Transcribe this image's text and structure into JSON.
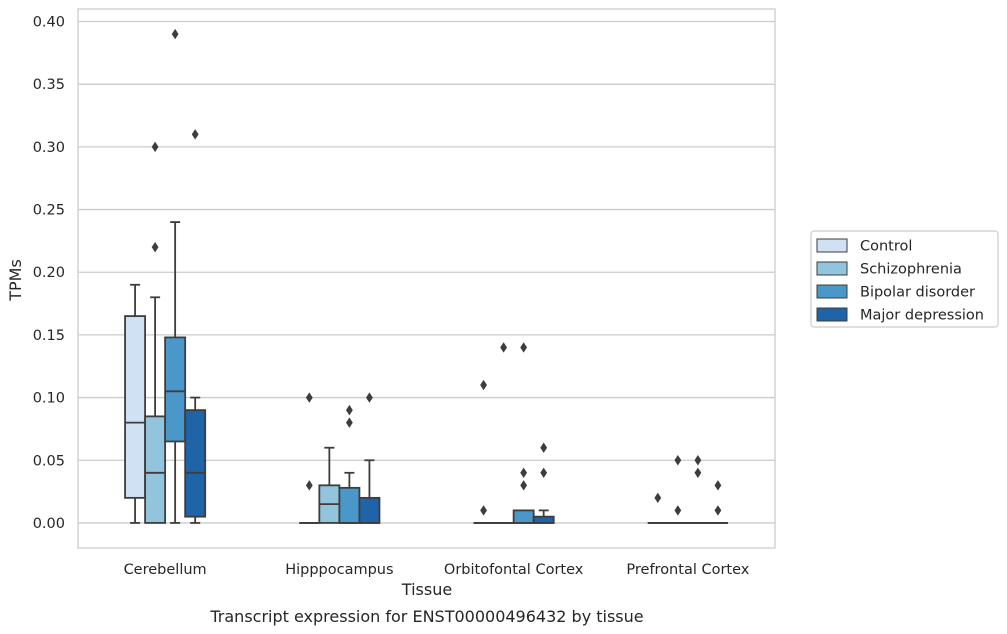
{
  "caption": "Transcript expression for ENST00000496432 by tissue",
  "chart_data": {
    "type": "box",
    "title": "",
    "xlabel": "Tissue",
    "ylabel": "TPMs",
    "ylim": [
      -0.02,
      0.41
    ],
    "yticks": [
      "0.00",
      "0.05",
      "0.10",
      "0.15",
      "0.20",
      "0.25",
      "0.30",
      "0.35",
      "0.40"
    ],
    "grid": "horizontal",
    "legend_position": "right",
    "categories": [
      "Cerebellum",
      "Hipppocampus",
      "Orbitofontal Cortex",
      "Prefrontal Cortex"
    ],
    "series": [
      {
        "name": "Control",
        "color": "#cfe1f2",
        "boxes": [
          {
            "q1": 0.02,
            "median": 0.08,
            "q3": 0.165,
            "whisker_low": 0.0,
            "whisker_high": 0.19,
            "outliers": []
          },
          {
            "q1": 0.0,
            "median": 0.0,
            "q3": 0.0,
            "whisker_low": 0.0,
            "whisker_high": 0.0,
            "outliers": [
              0.03,
              0.1
            ]
          },
          {
            "q1": 0.0,
            "median": 0.0,
            "q3": 0.0,
            "whisker_low": 0.0,
            "whisker_high": 0.0,
            "outliers": [
              0.01,
              0.11
            ]
          },
          {
            "q1": 0.0,
            "median": 0.0,
            "q3": 0.0,
            "whisker_low": 0.0,
            "whisker_high": 0.0,
            "outliers": [
              0.02
            ]
          }
        ]
      },
      {
        "name": "Schizophrenia",
        "color": "#93c4de",
        "boxes": [
          {
            "q1": 0.0,
            "median": 0.04,
            "q3": 0.085,
            "whisker_low": 0.0,
            "whisker_high": 0.18,
            "outliers": [
              0.22,
              0.3
            ]
          },
          {
            "q1": 0.0,
            "median": 0.015,
            "q3": 0.03,
            "whisker_low": 0.0,
            "whisker_high": 0.06,
            "outliers": []
          },
          {
            "q1": 0.0,
            "median": 0.0,
            "q3": 0.0,
            "whisker_low": 0.0,
            "whisker_high": 0.0,
            "outliers": [
              0.14
            ]
          },
          {
            "q1": 0.0,
            "median": 0.0,
            "q3": 0.0,
            "whisker_low": 0.0,
            "whisker_high": 0.0,
            "outliers": [
              0.01,
              0.05
            ]
          }
        ]
      },
      {
        "name": "Bipolar disorder",
        "color": "#4a98c9",
        "boxes": [
          {
            "q1": 0.065,
            "median": 0.105,
            "q3": 0.148,
            "whisker_low": 0.0,
            "whisker_high": 0.24,
            "outliers": [
              0.39
            ]
          },
          {
            "q1": 0.0,
            "median": 0.0,
            "q3": 0.028,
            "whisker_low": 0.0,
            "whisker_high": 0.04,
            "outliers": [
              0.08,
              0.09
            ]
          },
          {
            "q1": 0.0,
            "median": 0.0,
            "q3": 0.01,
            "whisker_low": 0.0,
            "whisker_high": 0.01,
            "outliers": [
              0.03,
              0.04,
              0.14
            ]
          },
          {
            "q1": 0.0,
            "median": 0.0,
            "q3": 0.0,
            "whisker_low": 0.0,
            "whisker_high": 0.0,
            "outliers": [
              0.04,
              0.05
            ]
          }
        ]
      },
      {
        "name": "Major depression",
        "color": "#1f63a8",
        "boxes": [
          {
            "q1": 0.005,
            "median": 0.04,
            "q3": 0.09,
            "whisker_low": 0.0,
            "whisker_high": 0.1,
            "outliers": [
              0.31
            ]
          },
          {
            "q1": 0.0,
            "median": 0.0,
            "q3": 0.02,
            "whisker_low": 0.0,
            "whisker_high": 0.05,
            "outliers": [
              0.1
            ]
          },
          {
            "q1": 0.0,
            "median": 0.0,
            "q3": 0.005,
            "whisker_low": 0.0,
            "whisker_high": 0.01,
            "outliers": [
              0.04,
              0.06
            ]
          },
          {
            "q1": 0.0,
            "median": 0.0,
            "q3": 0.0,
            "whisker_low": 0.0,
            "whisker_high": 0.0,
            "outliers": [
              0.01,
              0.03
            ]
          }
        ]
      }
    ]
  }
}
